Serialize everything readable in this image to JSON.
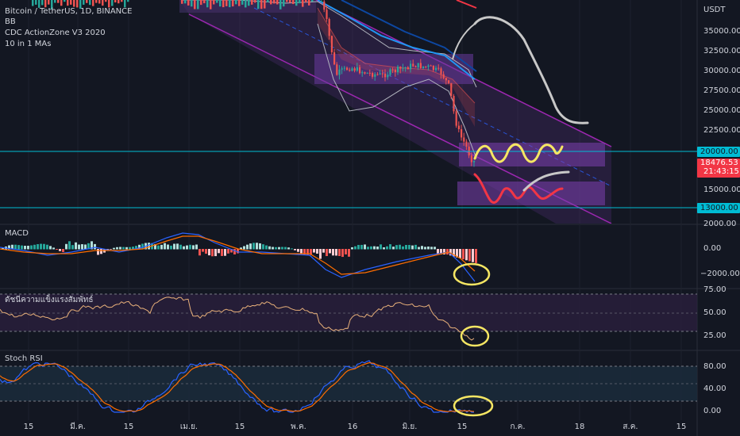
{
  "header": {
    "symbol_line": "Bitcoin / TetherUS, 1D, BINANCE",
    "indicators": [
      "BB",
      "CDC ActionZone V3 2020",
      "10 in 1 MAs"
    ],
    "currency": "USDT"
  },
  "price_axis": {
    "ticks": [
      "35000.00",
      "32500.00",
      "30000.00",
      "27500.00",
      "25000.00",
      "22500.00",
      "15000.00",
      "2000.00"
    ]
  },
  "price_tags": {
    "level_20000": "20000.00",
    "current_price": "18476.53",
    "countdown": "21:43:15",
    "level_13000": "13000.00"
  },
  "macd_pane": {
    "title": "MACD",
    "ticks": [
      "0.00",
      "−2000.00"
    ]
  },
  "rsi_pane": {
    "title": "ดัชนีความแข็งแรงสัมพัทธ์",
    "ticks": [
      "75.00",
      "50.00",
      "25.00"
    ]
  },
  "stoch_pane": {
    "title": "Stoch RSI",
    "ticks": [
      "80.00",
      "40.00",
      "0.00"
    ]
  },
  "time_axis": {
    "labels": [
      "15",
      "มี.ค.",
      "15",
      "เม.ย.",
      "15",
      "พ.ค.",
      "16",
      "มิ.ย.",
      "15",
      "ก.ค.",
      "18",
      "ส.ค.",
      "15"
    ]
  },
  "colors": {
    "background": "#131722",
    "candle_up": "#26a69a",
    "candle_down": "#ef5350",
    "channel": "#9c27b0",
    "level_line": "#00bcd4",
    "annotation_yellow": "#f5e663",
    "annotation_red": "#f23645",
    "annotation_white": "#c8c8c8",
    "macd_line": "#2962ff",
    "signal_line": "#ff6d00",
    "rsi_line": "#e8b07a",
    "stoch_k": "#2962ff",
    "stoch_d": "#ff6d00",
    "price_tag_red": "#f23645"
  }
}
